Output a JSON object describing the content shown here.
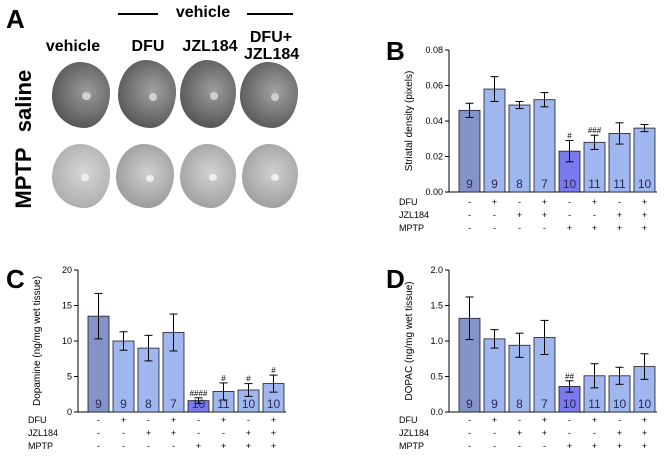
{
  "panel_a": {
    "letter": "A",
    "group_label": "vehicle",
    "columns": [
      "vehicle",
      "DFU",
      "JZL184",
      "DFU+\nJZL184"
    ],
    "rows": [
      "saline",
      "MPTP"
    ]
  },
  "chart_data": [
    {
      "panel": "B",
      "type": "bar",
      "ylabel": "Striatal density (pixels)",
      "ylim": [
        0,
        0.08
      ],
      "yticks": [
        "0.00",
        "0.02",
        "0.04",
        "0.06",
        "0.08"
      ],
      "values": [
        0.046,
        0.058,
        0.049,
        0.052,
        0.023,
        0.028,
        0.033,
        0.036
      ],
      "errors": [
        0.004,
        0.007,
        0.002,
        0.004,
        0.006,
        0.004,
        0.006,
        0.002
      ],
      "n": [
        "9",
        "9",
        "8",
        "7",
        "10",
        "11",
        "11",
        "10"
      ],
      "annotations": [
        "",
        "",
        "",
        "",
        "#",
        "###",
        "",
        ""
      ],
      "factor_rows": [
        {
          "label": "DFU",
          "signs": [
            "-",
            "+",
            "-",
            "+",
            "-",
            "+",
            "-",
            "+"
          ]
        },
        {
          "label": "JZL184",
          "signs": [
            "-",
            "-",
            "+",
            "+",
            "-",
            "-",
            "+",
            "+"
          ]
        },
        {
          "label": "MPTP",
          "signs": [
            "-",
            "-",
            "-",
            "-",
            "+",
            "+",
            "+",
            "+"
          ]
        }
      ],
      "colors": {
        "vehicle": "#8494c8",
        "treated": "#9fb6ee",
        "mptp": "#7a7aee",
        "nlabel": "#2a2a55"
      }
    },
    {
      "panel": "C",
      "type": "bar",
      "ylabel": "Dopamine (ng/mg wet tissue)",
      "ylim": [
        0,
        20
      ],
      "yticks": [
        "0",
        "5",
        "10",
        "15",
        "20"
      ],
      "values": [
        13.5,
        10.0,
        9.0,
        11.2,
        1.6,
        2.9,
        3.1,
        4.0
      ],
      "errors": [
        3.2,
        1.3,
        1.8,
        2.6,
        0.4,
        1.2,
        0.9,
        1.2
      ],
      "n": [
        "9",
        "9",
        "8",
        "7",
        "10",
        "11",
        "10",
        "10"
      ],
      "annotations": [
        "",
        "",
        "",
        "",
        "####",
        "#",
        "#",
        "#"
      ],
      "factor_rows": [
        {
          "label": "DFU",
          "signs": [
            "-",
            "+",
            "-",
            "+",
            "-",
            "+",
            "-",
            "+"
          ]
        },
        {
          "label": "JZL184",
          "signs": [
            "-",
            "-",
            "+",
            "+",
            "-",
            "-",
            "+",
            "+"
          ]
        },
        {
          "label": "MPTP",
          "signs": [
            "-",
            "-",
            "-",
            "-",
            "+",
            "+",
            "+",
            "+"
          ]
        }
      ],
      "colors": {
        "vehicle": "#8494c8",
        "treated": "#9fb6ee",
        "mptp": "#7a7aee",
        "nlabel": "#2a2a55"
      }
    },
    {
      "panel": "D",
      "type": "bar",
      "ylabel": "DOPAC (ng/mg wet tissue)",
      "ylim": [
        0,
        2.0
      ],
      "yticks": [
        "0.0",
        "0.5",
        "1.0",
        "1.5",
        "2.0"
      ],
      "values": [
        1.32,
        1.03,
        0.94,
        1.05,
        0.36,
        0.51,
        0.51,
        0.64
      ],
      "errors": [
        0.3,
        0.13,
        0.17,
        0.24,
        0.08,
        0.17,
        0.12,
        0.18
      ],
      "n": [
        "9",
        "9",
        "8",
        "7",
        "10",
        "11",
        "10",
        "10"
      ],
      "annotations": [
        "",
        "",
        "",
        "",
        "##",
        "",
        "",
        ""
      ],
      "factor_rows": [
        {
          "label": "DFU",
          "signs": [
            "-",
            "+",
            "-",
            "+",
            "-",
            "+",
            "-",
            "+"
          ]
        },
        {
          "label": "JZL184",
          "signs": [
            "-",
            "-",
            "+",
            "+",
            "-",
            "-",
            "+",
            "+"
          ]
        },
        {
          "label": "MPTP",
          "signs": [
            "-",
            "-",
            "-",
            "-",
            "+",
            "+",
            "+",
            "+"
          ]
        }
      ],
      "colors": {
        "vehicle": "#8494c8",
        "treated": "#9fb6ee",
        "mptp": "#7a7aee",
        "nlabel": "#2a2a55"
      }
    }
  ]
}
